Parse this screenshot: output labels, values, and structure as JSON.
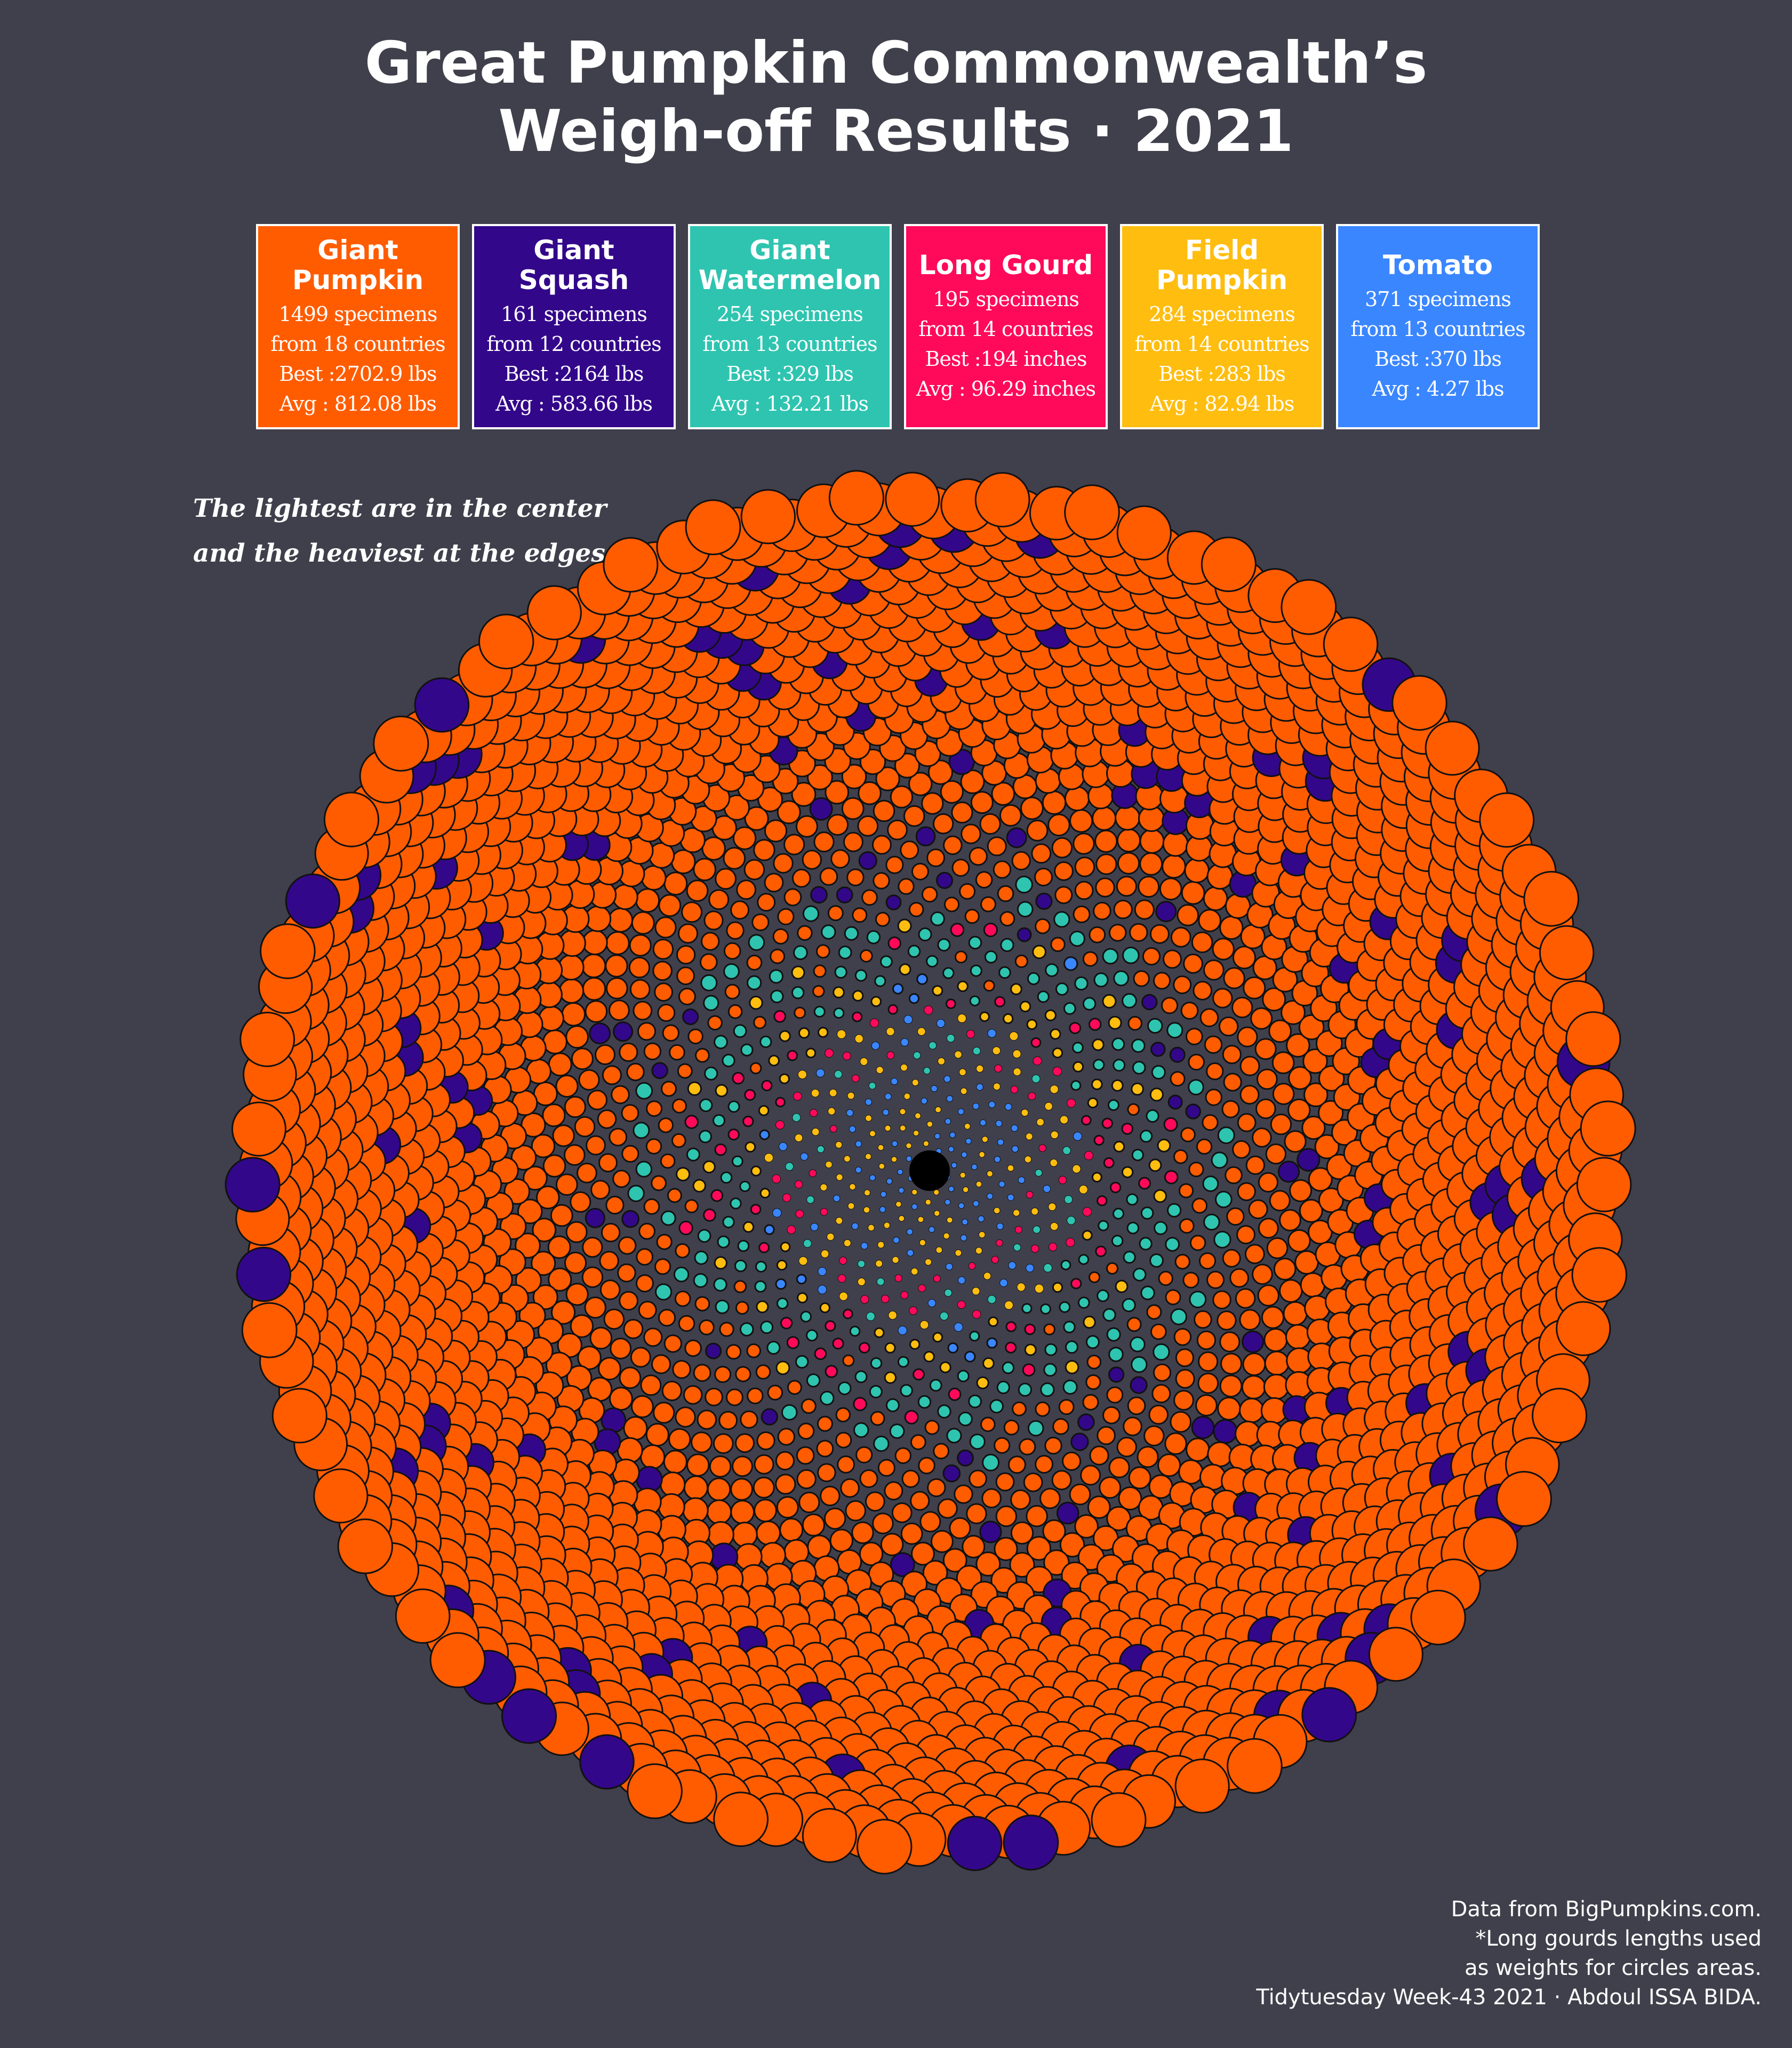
{
  "title": {
    "line1": "Great Pumpkin Commonwealth’s",
    "line2": "Weigh-off Results · 2021"
  },
  "annotation": {
    "line1": "The lightest are in the center",
    "line2": "and the heaviest at the edges."
  },
  "credits": {
    "line1": "Data from BigPumpkins.com.",
    "line2": "*Long gourds lengths used",
    "line3": "as weights for circles areas.",
    "line4": "Tidytuesday Week-43 2021 · Abdoul ISSA BIDA."
  },
  "categories": [
    {
      "name": "Giant\nPumpkin",
      "color": "#ff5c00",
      "specimens": "1499 specimens",
      "countries": "from 18 countries",
      "best": "Best :2702.9 lbs",
      "avg": "Avg : 812.08 lbs"
    },
    {
      "name": "Giant\nSquash",
      "color": "#33078a",
      "specimens": "161 specimens",
      "countries": "from 12 countries",
      "best": "Best :2164 lbs",
      "avg": "Avg : 583.66 lbs"
    },
    {
      "name": "Giant\nWatermelon",
      "color": "#2ec4b0",
      "specimens": "254 specimens",
      "countries": "from 13 countries",
      "best": "Best :329 lbs",
      "avg": "Avg : 132.21 lbs"
    },
    {
      "name": "Long Gourd",
      "color": "#ff0a5a",
      "specimens": "195 specimens",
      "countries": "from 14 countries",
      "best": "Best :194 inches",
      "avg": "Avg : 96.29 inches"
    },
    {
      "name": "Field\nPumpkin",
      "color": "#ffbd0f",
      "specimens": "284 specimens",
      "countries": "from 14 countries",
      "best": "Best :283 lbs",
      "avg": "Avg : 82.94 lbs"
    },
    {
      "name": "Tomato",
      "color": "#3a86ff",
      "specimens": "371 specimens",
      "countries": "from 13 countries",
      "best": "Best :370 lbs",
      "avg": "Avg : 4.27 lbs"
    }
  ],
  "chart_data": {
    "type": "packed-circles (phyllotaxis spiral)",
    "description": "One circle per specimen; area proportional to weight (length for long gourds), ordered lightest at center to heaviest at edges.",
    "series": [
      {
        "name": "Giant Pumpkin",
        "count": 1499,
        "best": 2702.9,
        "avg": 812.08,
        "unit": "lbs"
      },
      {
        "name": "Giant Squash",
        "count": 161,
        "best": 2164,
        "avg": 583.66,
        "unit": "lbs"
      },
      {
        "name": "Giant Watermelon",
        "count": 254,
        "best": 329,
        "avg": 132.21,
        "unit": "lbs"
      },
      {
        "name": "Long Gourd",
        "count": 195,
        "best": 194,
        "avg": 96.29,
        "unit": "inches"
      },
      {
        "name": "Field Pumpkin",
        "count": 284,
        "best": 283,
        "avg": 82.94,
        "unit": "lbs"
      },
      {
        "name": "Tomato",
        "count": 371,
        "best": 370,
        "avg": 4.27,
        "unit": "lbs"
      }
    ]
  }
}
